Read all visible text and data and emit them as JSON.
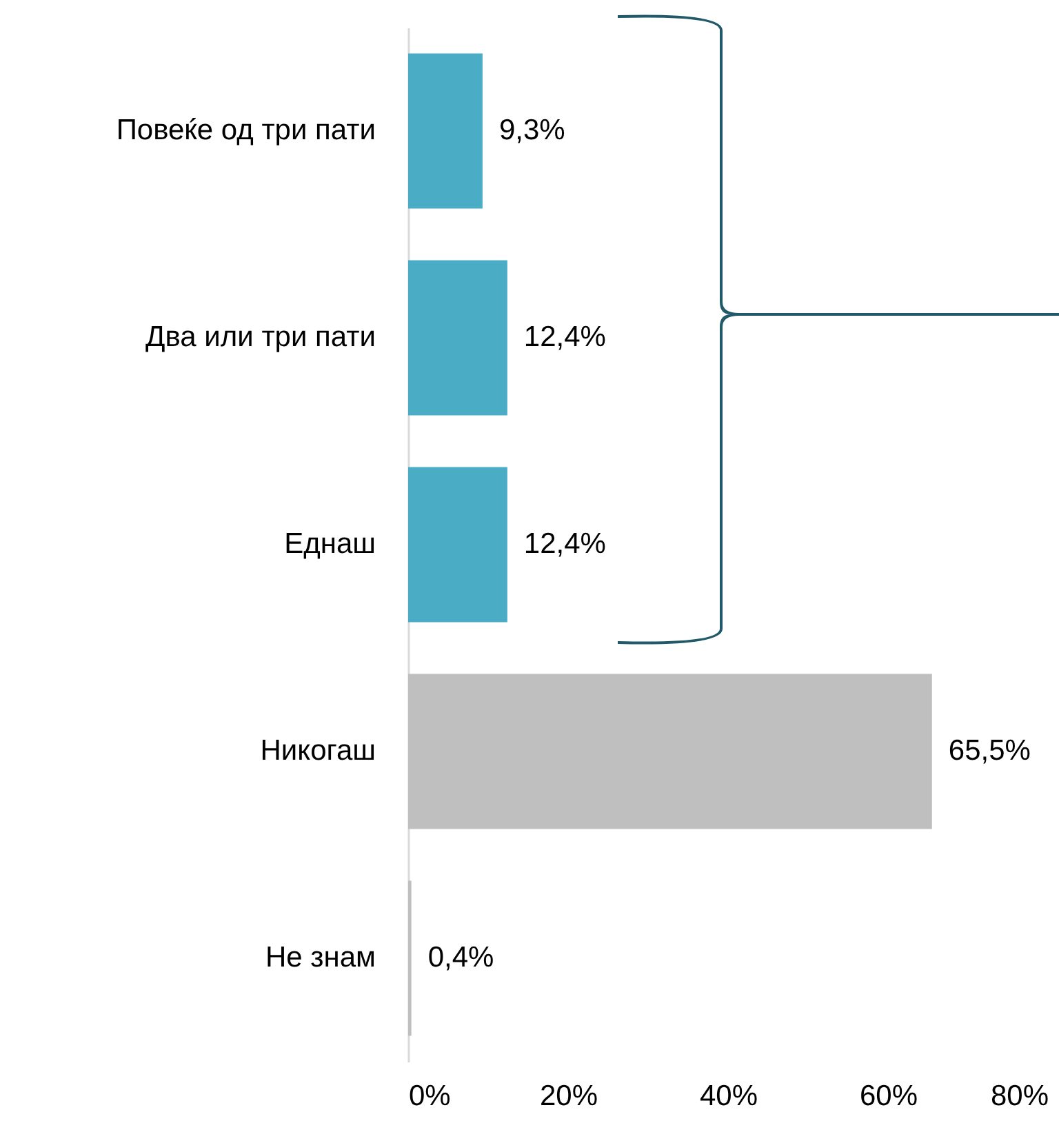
{
  "chart_data": {
    "type": "bar",
    "orientation": "horizontal",
    "categories": [
      "Повеќе од три пати",
      "Два или три пати",
      "Еднаш",
      "Никогаш",
      "Не знам"
    ],
    "values": [
      9.3,
      12.4,
      12.4,
      65.5,
      0.4
    ],
    "colors": [
      "#4bacc6",
      "#4bacc6",
      "#4bacc6",
      "#bfbfbf",
      "#bfbfbf"
    ],
    "value_labels": [
      "9,3%",
      "12,4%",
      "12,4%",
      "65,5%",
      "0,4%"
    ],
    "xlim": [
      0,
      80
    ],
    "xticks": [
      {
        "value": 0,
        "label": "0%"
      },
      {
        "value": 20,
        "label": "20%"
      },
      {
        "value": 40,
        "label": "40%"
      },
      {
        "value": 60,
        "label": "60%"
      },
      {
        "value": 80,
        "label": "80%"
      }
    ],
    "grid": false
  }
}
